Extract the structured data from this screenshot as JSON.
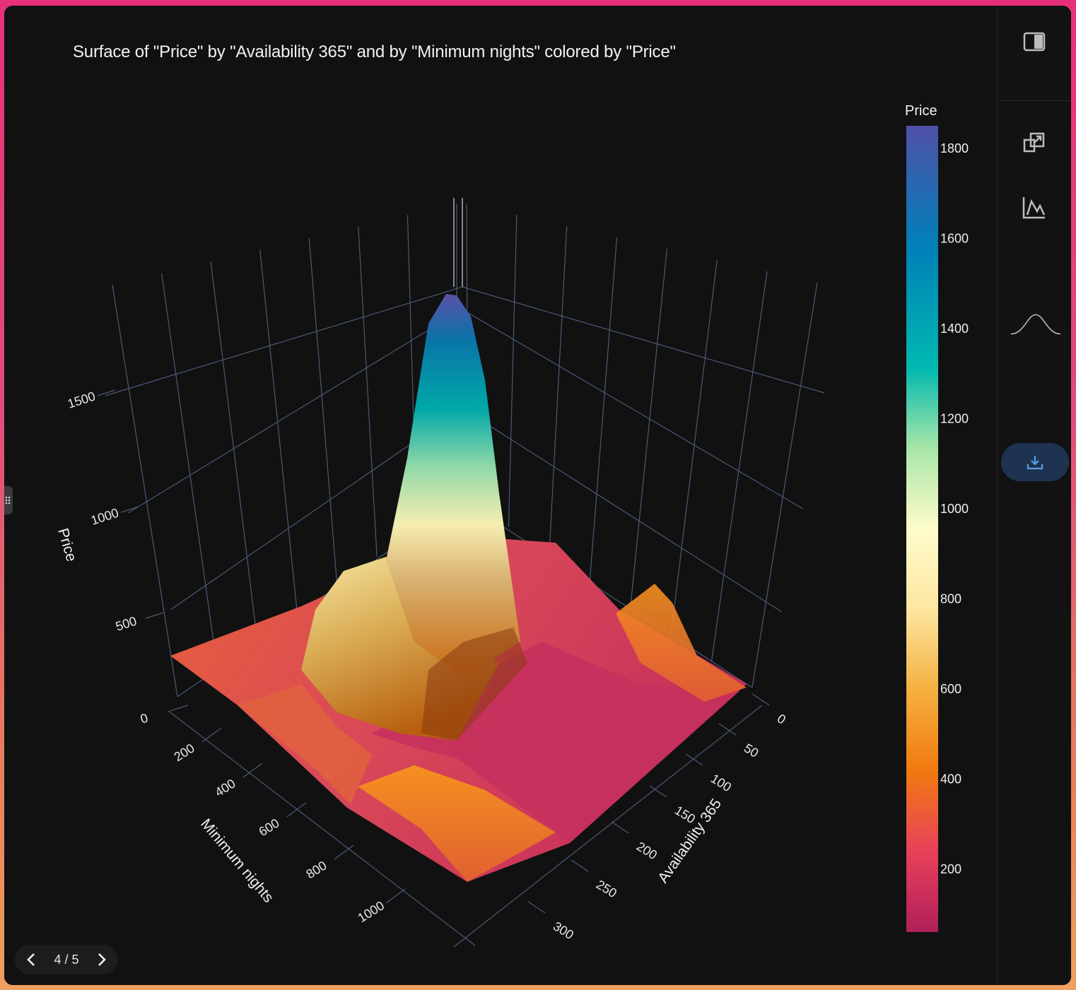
{
  "title": "Surface of \"Price\" by \"Availability 365\" and by \"Minimum nights\" colored by \"Price\"",
  "pager": {
    "label": "4 / 5",
    "current": 4,
    "total": 5
  },
  "icons": {
    "panel_toggle": "panel-toggle-icon",
    "popout": "popout-icon",
    "line_chart": "line-chart-icon",
    "distribution": "bell-curve-icon",
    "download": "download-icon",
    "prev": "chevron-left-icon",
    "next": "chevron-right-icon"
  },
  "chart_data": {
    "type": "surface",
    "title": "Surface of \"Price\" by \"Availability 365\" and by \"Minimum nights\" colored by \"Price\"",
    "x_axis": {
      "label": "Availability 365",
      "ticks": [
        "0",
        "50",
        "100",
        "150",
        "200",
        "250",
        "300"
      ],
      "range": [
        0,
        320
      ]
    },
    "y_axis": {
      "label": "Minimum nights",
      "ticks": [
        "0",
        "200",
        "400",
        "600",
        "800",
        "1000"
      ],
      "range": [
        0,
        1100
      ]
    },
    "z_axis": {
      "label": "Price",
      "ticks": [
        "0",
        "500",
        "1000",
        "1500"
      ],
      "range": [
        0,
        1850
      ]
    },
    "colorbar": {
      "title": "Price",
      "ticks": [
        "1800",
        "1600",
        "1400",
        "1200",
        "1000",
        "800",
        "600",
        "400",
        "200"
      ],
      "range": [
        60,
        1850
      ],
      "colorscale": [
        "#b0205a",
        "#e8405a",
        "#f07a10",
        "#f5b040",
        "#fde6a0",
        "#fffccc",
        "#a8e6a8",
        "#00b8b0",
        "#0080b8",
        "#5050a8"
      ]
    },
    "surface_features": [
      {
        "description": "peak",
        "availability_365": 0,
        "minimum_nights": 180,
        "price": 1830
      },
      {
        "description": "plateau",
        "availability_365": 30,
        "minimum_nights": 150,
        "price": 900
      },
      {
        "description": "ridge",
        "availability_365": 240,
        "minimum_nights": 40,
        "price": 500
      },
      {
        "description": "baseline",
        "price": 300
      },
      {
        "description": "trough",
        "availability_365": 150,
        "minimum_nights": 500,
        "price": 80
      }
    ]
  }
}
